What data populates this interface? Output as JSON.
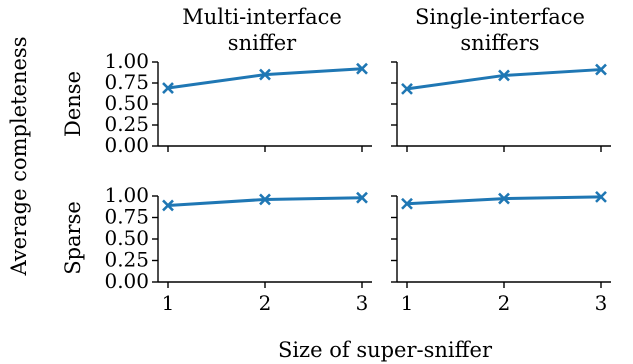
{
  "figure": {
    "column_titles": [
      [
        "Multi-interface",
        "sniffer"
      ],
      [
        "Single-interface",
        "sniffers"
      ]
    ],
    "row_labels": [
      "Dense",
      "Sparse"
    ],
    "shared_ylabel": "Average completeness",
    "shared_xlabel": "Size of super-sniffer"
  },
  "colors": {
    "series": "#1f77b4",
    "axis": "#000000"
  },
  "chart_data": [
    {
      "type": "line",
      "row": "Dense",
      "column": "Multi-interface sniffer",
      "x": [
        1,
        2,
        3
      ],
      "series": [
        {
          "values": [
            0.69,
            0.85,
            0.92
          ]
        }
      ],
      "xlim": [
        1,
        3
      ],
      "ylim": [
        0,
        1
      ],
      "xticks": [
        1,
        2,
        3
      ],
      "yticks": [
        0.0,
        0.25,
        0.5,
        0.75,
        1.0
      ],
      "yticklabels": [
        "0.00",
        "0.25",
        "0.50",
        "0.75",
        "1.00"
      ],
      "xticklabels": [],
      "marker": "x",
      "grid": false
    },
    {
      "type": "line",
      "row": "Dense",
      "column": "Single-interface sniffers",
      "x": [
        1,
        2,
        3
      ],
      "series": [
        {
          "values": [
            0.68,
            0.84,
            0.91
          ]
        }
      ],
      "xlim": [
        1,
        3
      ],
      "ylim": [
        0,
        1
      ],
      "xticks": [
        1,
        2,
        3
      ],
      "yticks": [
        0.0,
        0.25,
        0.5,
        0.75,
        1.0
      ],
      "yticklabels": [],
      "xticklabels": [],
      "marker": "x",
      "grid": false
    },
    {
      "type": "line",
      "row": "Sparse",
      "column": "Multi-interface sniffer",
      "x": [
        1,
        2,
        3
      ],
      "series": [
        {
          "values": [
            0.89,
            0.96,
            0.98
          ]
        }
      ],
      "xlim": [
        1,
        3
      ],
      "ylim": [
        0,
        1
      ],
      "xticks": [
        1,
        2,
        3
      ],
      "yticks": [
        0.0,
        0.25,
        0.5,
        0.75,
        1.0
      ],
      "yticklabels": [
        "0.00",
        "0.25",
        "0.50",
        "0.75",
        "1.00"
      ],
      "xticklabels": [
        "1",
        "2",
        "3"
      ],
      "marker": "x",
      "grid": false
    },
    {
      "type": "line",
      "row": "Sparse",
      "column": "Single-interface sniffers",
      "x": [
        1,
        2,
        3
      ],
      "series": [
        {
          "values": [
            0.91,
            0.97,
            0.99
          ]
        }
      ],
      "xlim": [
        1,
        3
      ],
      "ylim": [
        0,
        1
      ],
      "xticks": [
        1,
        2,
        3
      ],
      "yticks": [
        0.0,
        0.25,
        0.5,
        0.75,
        1.0
      ],
      "yticklabels": [],
      "xticklabels": [
        "1",
        "2",
        "3"
      ],
      "marker": "x",
      "grid": false
    }
  ]
}
